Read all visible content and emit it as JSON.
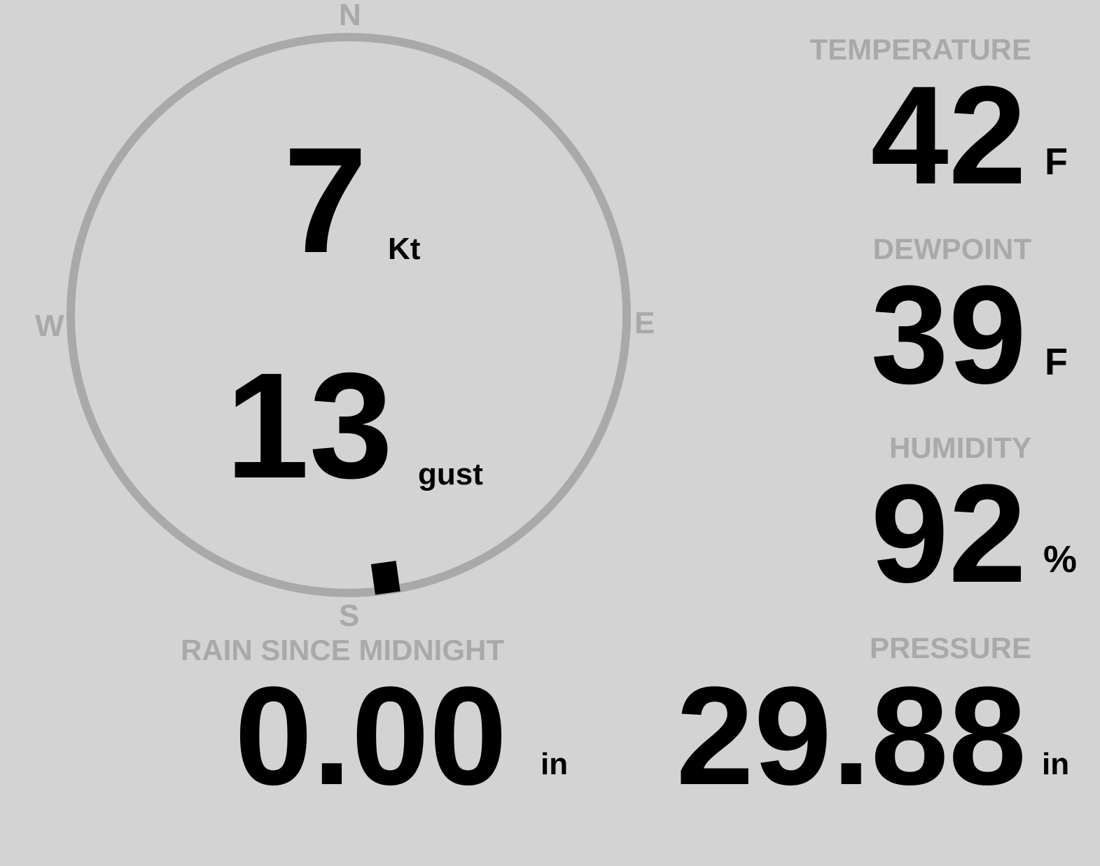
{
  "colors": {
    "background": "#d3d3d3",
    "label": "#a9a9a9",
    "value": "#000000"
  },
  "wind": {
    "compass": {
      "n": "N",
      "e": "E",
      "s": "S",
      "w": "W"
    },
    "speed": "7",
    "speed_unit": "Kt",
    "gust": "13",
    "gust_unit": "gust",
    "direction_deg": 172
  },
  "temperature": {
    "label": "TEMPERATURE",
    "value": "42",
    "unit": "F"
  },
  "dewpoint": {
    "label": "DEWPOINT",
    "value": "39",
    "unit": "F"
  },
  "humidity": {
    "label": "HUMIDITY",
    "value": "92",
    "unit": "%"
  },
  "pressure": {
    "label": "PRESSURE",
    "value": "29.88",
    "unit": "in"
  },
  "rain": {
    "label": "RAIN SINCE MIDNIGHT",
    "value": "0.00",
    "unit": "in"
  }
}
